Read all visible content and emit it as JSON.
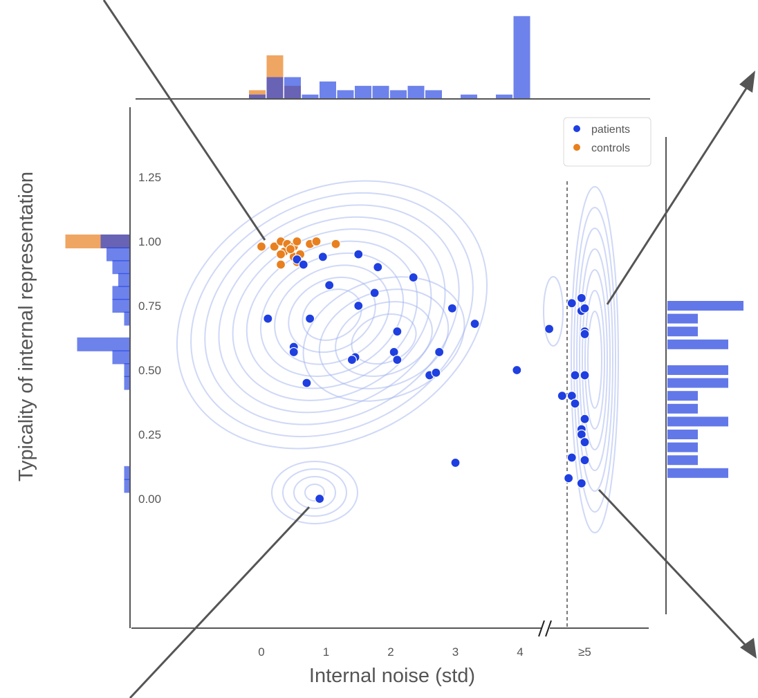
{
  "chart_data": {
    "type": "scatter",
    "xlabel": "Internal noise (std)",
    "ylabel": "Typicality of internal representation",
    "x_tick_labels": [
      "0",
      "1",
      "2",
      "3",
      "4",
      "≥5"
    ],
    "y_tick_labels": [
      "0.00",
      "0.25",
      "0.50",
      "0.75",
      "1.00",
      "1.25"
    ],
    "xlim": [
      -0.8,
      6.2
    ],
    "ylim": [
      -0.5,
      1.5
    ],
    "grid": false,
    "legend_position": "top-right",
    "threshold_line_x": 4.5,
    "series": [
      {
        "name": "patients",
        "color": "#1f3fe0",
        "points": [
          [
            0.55,
            0.93
          ],
          [
            0.65,
            0.91
          ],
          [
            0.95,
            0.94
          ],
          [
            1.05,
            0.83
          ],
          [
            1.5,
            0.95
          ],
          [
            1.8,
            0.9
          ],
          [
            2.35,
            0.86
          ],
          [
            1.75,
            0.8
          ],
          [
            1.5,
            0.75
          ],
          [
            2.95,
            0.74
          ],
          [
            3.3,
            0.68
          ],
          [
            0.1,
            0.7
          ],
          [
            0.75,
            0.7
          ],
          [
            2.1,
            0.65
          ],
          [
            0.5,
            0.59
          ],
          [
            0.5,
            0.57
          ],
          [
            2.05,
            0.57
          ],
          [
            2.75,
            0.57
          ],
          [
            1.45,
            0.55
          ],
          [
            1.4,
            0.54
          ],
          [
            2.1,
            0.54
          ],
          [
            2.6,
            0.48
          ],
          [
            2.7,
            0.49
          ],
          [
            3.95,
            0.5
          ],
          [
            0.7,
            0.45
          ],
          [
            3.0,
            0.14
          ],
          [
            0.9,
            0.0
          ],
          [
            4.45,
            0.66
          ],
          [
            4.8,
            0.76
          ],
          [
            4.95,
            0.78
          ],
          [
            4.95,
            0.73
          ],
          [
            5.0,
            0.74
          ],
          [
            5.0,
            0.65
          ],
          [
            5.0,
            0.64
          ],
          [
            4.85,
            0.48
          ],
          [
            5.0,
            0.48
          ],
          [
            4.65,
            0.4
          ],
          [
            4.8,
            0.4
          ],
          [
            4.85,
            0.37
          ],
          [
            5.0,
            0.31
          ],
          [
            4.95,
            0.27
          ],
          [
            4.95,
            0.25
          ],
          [
            5.0,
            0.22
          ],
          [
            4.8,
            0.16
          ],
          [
            5.0,
            0.15
          ],
          [
            4.75,
            0.08
          ],
          [
            4.95,
            0.06
          ]
        ]
      },
      {
        "name": "controls",
        "color": "#e8801f",
        "points": [
          [
            0.0,
            0.98
          ],
          [
            0.2,
            0.98
          ],
          [
            0.3,
            1.0
          ],
          [
            0.35,
            0.96
          ],
          [
            0.4,
            0.99
          ],
          [
            0.5,
            0.98
          ],
          [
            0.55,
            1.0
          ],
          [
            0.75,
            0.99
          ],
          [
            0.85,
            1.0
          ],
          [
            1.15,
            0.99
          ],
          [
            0.3,
            0.95
          ],
          [
            0.5,
            0.94
          ],
          [
            0.6,
            0.95
          ],
          [
            0.3,
            0.91
          ],
          [
            0.55,
            0.92
          ],
          [
            0.45,
            0.97
          ]
        ]
      }
    ],
    "top_histogram": {
      "bins": [
        "0",
        "0.25",
        "0.5",
        "0.75",
        "1",
        "1.25",
        "1.5",
        "1.75",
        "2",
        "2.25",
        "2.5",
        "2.75",
        "3",
        "3.25",
        "3.5",
        "3.75",
        "4"
      ],
      "patients": [
        1,
        5,
        5,
        1,
        4,
        2,
        3,
        3,
        2,
        3,
        2,
        0,
        1,
        0,
        1,
        19,
        0
      ],
      "controls": [
        2,
        10,
        3,
        0,
        0,
        0,
        0,
        0,
        0,
        0,
        0,
        0,
        0,
        0,
        0,
        0,
        0
      ]
    },
    "left_histogram": {
      "bins": [
        "1.00",
        "0.95",
        "0.90",
        "0.85",
        "0.80",
        "0.75",
        "0.70",
        "0.65",
        "0.60",
        "0.55",
        "0.50",
        "0.45",
        "0.10",
        "0.05"
      ],
      "patients": [
        5,
        4,
        3,
        2,
        3,
        3,
        1,
        0,
        9,
        3,
        1,
        1,
        1,
        1
      ],
      "controls": [
        11,
        0,
        0,
        0,
        0,
        0,
        0,
        0,
        0,
        0,
        0,
        0,
        0,
        0
      ]
    },
    "right_histogram": {
      "bins": [
        "0.75",
        "0.70",
        "0.65",
        "0.60",
        "0.50",
        "0.45",
        "0.40",
        "0.35",
        "0.30",
        "0.25",
        "0.20",
        "0.15",
        "0.10"
      ],
      "patients": [
        5,
        2,
        2,
        4,
        4,
        4,
        2,
        2,
        4,
        2,
        2,
        2,
        4
      ]
    }
  }
}
